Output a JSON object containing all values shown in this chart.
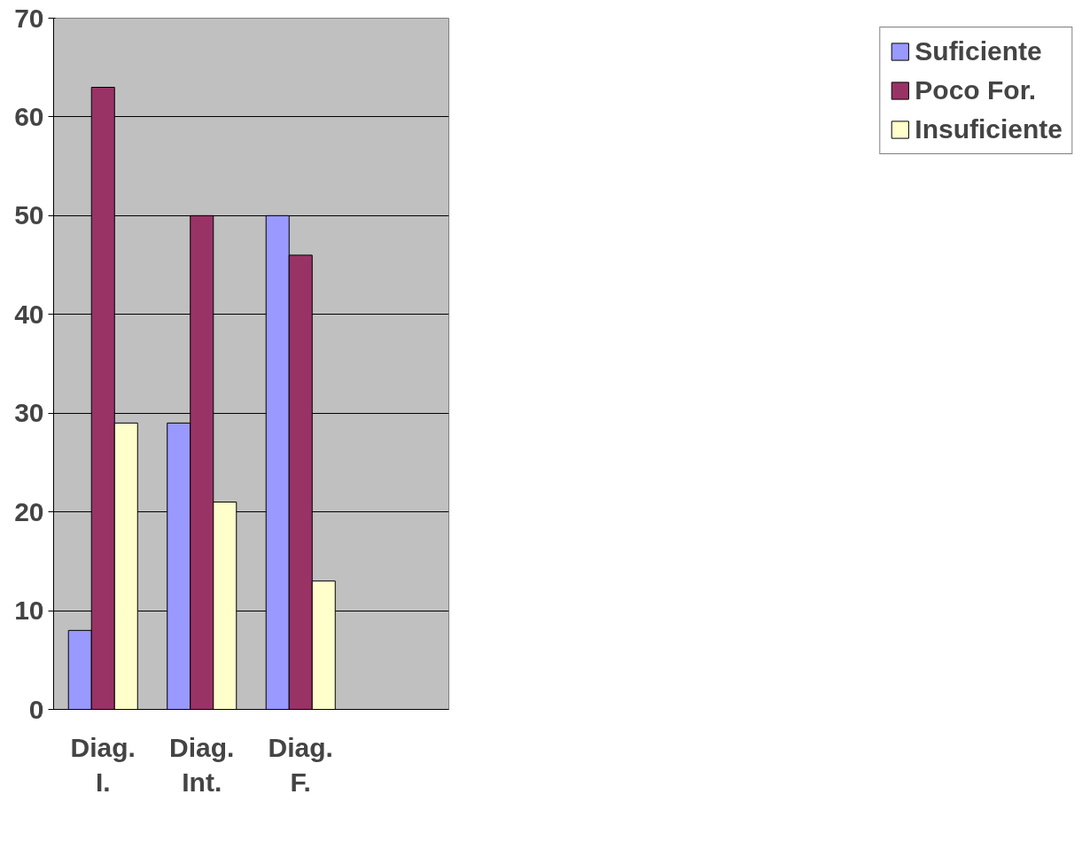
{
  "chart_data": {
    "type": "bar",
    "categories": [
      "Diag. I.",
      "Diag. Int.",
      "Diag. F.",
      null
    ],
    "series": [
      {
        "name": "Suficiente",
        "color": "#9999ff",
        "values": [
          8,
          29,
          50,
          null
        ]
      },
      {
        "name": "Poco For.",
        "color": "#993366",
        "values": [
          63,
          50,
          46,
          null
        ]
      },
      {
        "name": "Insuficiente",
        "color": "#ffffcc",
        "values": [
          29,
          21,
          13,
          null
        ]
      }
    ],
    "ylim": [
      0,
      70
    ],
    "yticks": [
      0,
      10,
      20,
      30,
      40,
      50,
      60,
      70
    ],
    "grid": "y",
    "legend": "right"
  }
}
